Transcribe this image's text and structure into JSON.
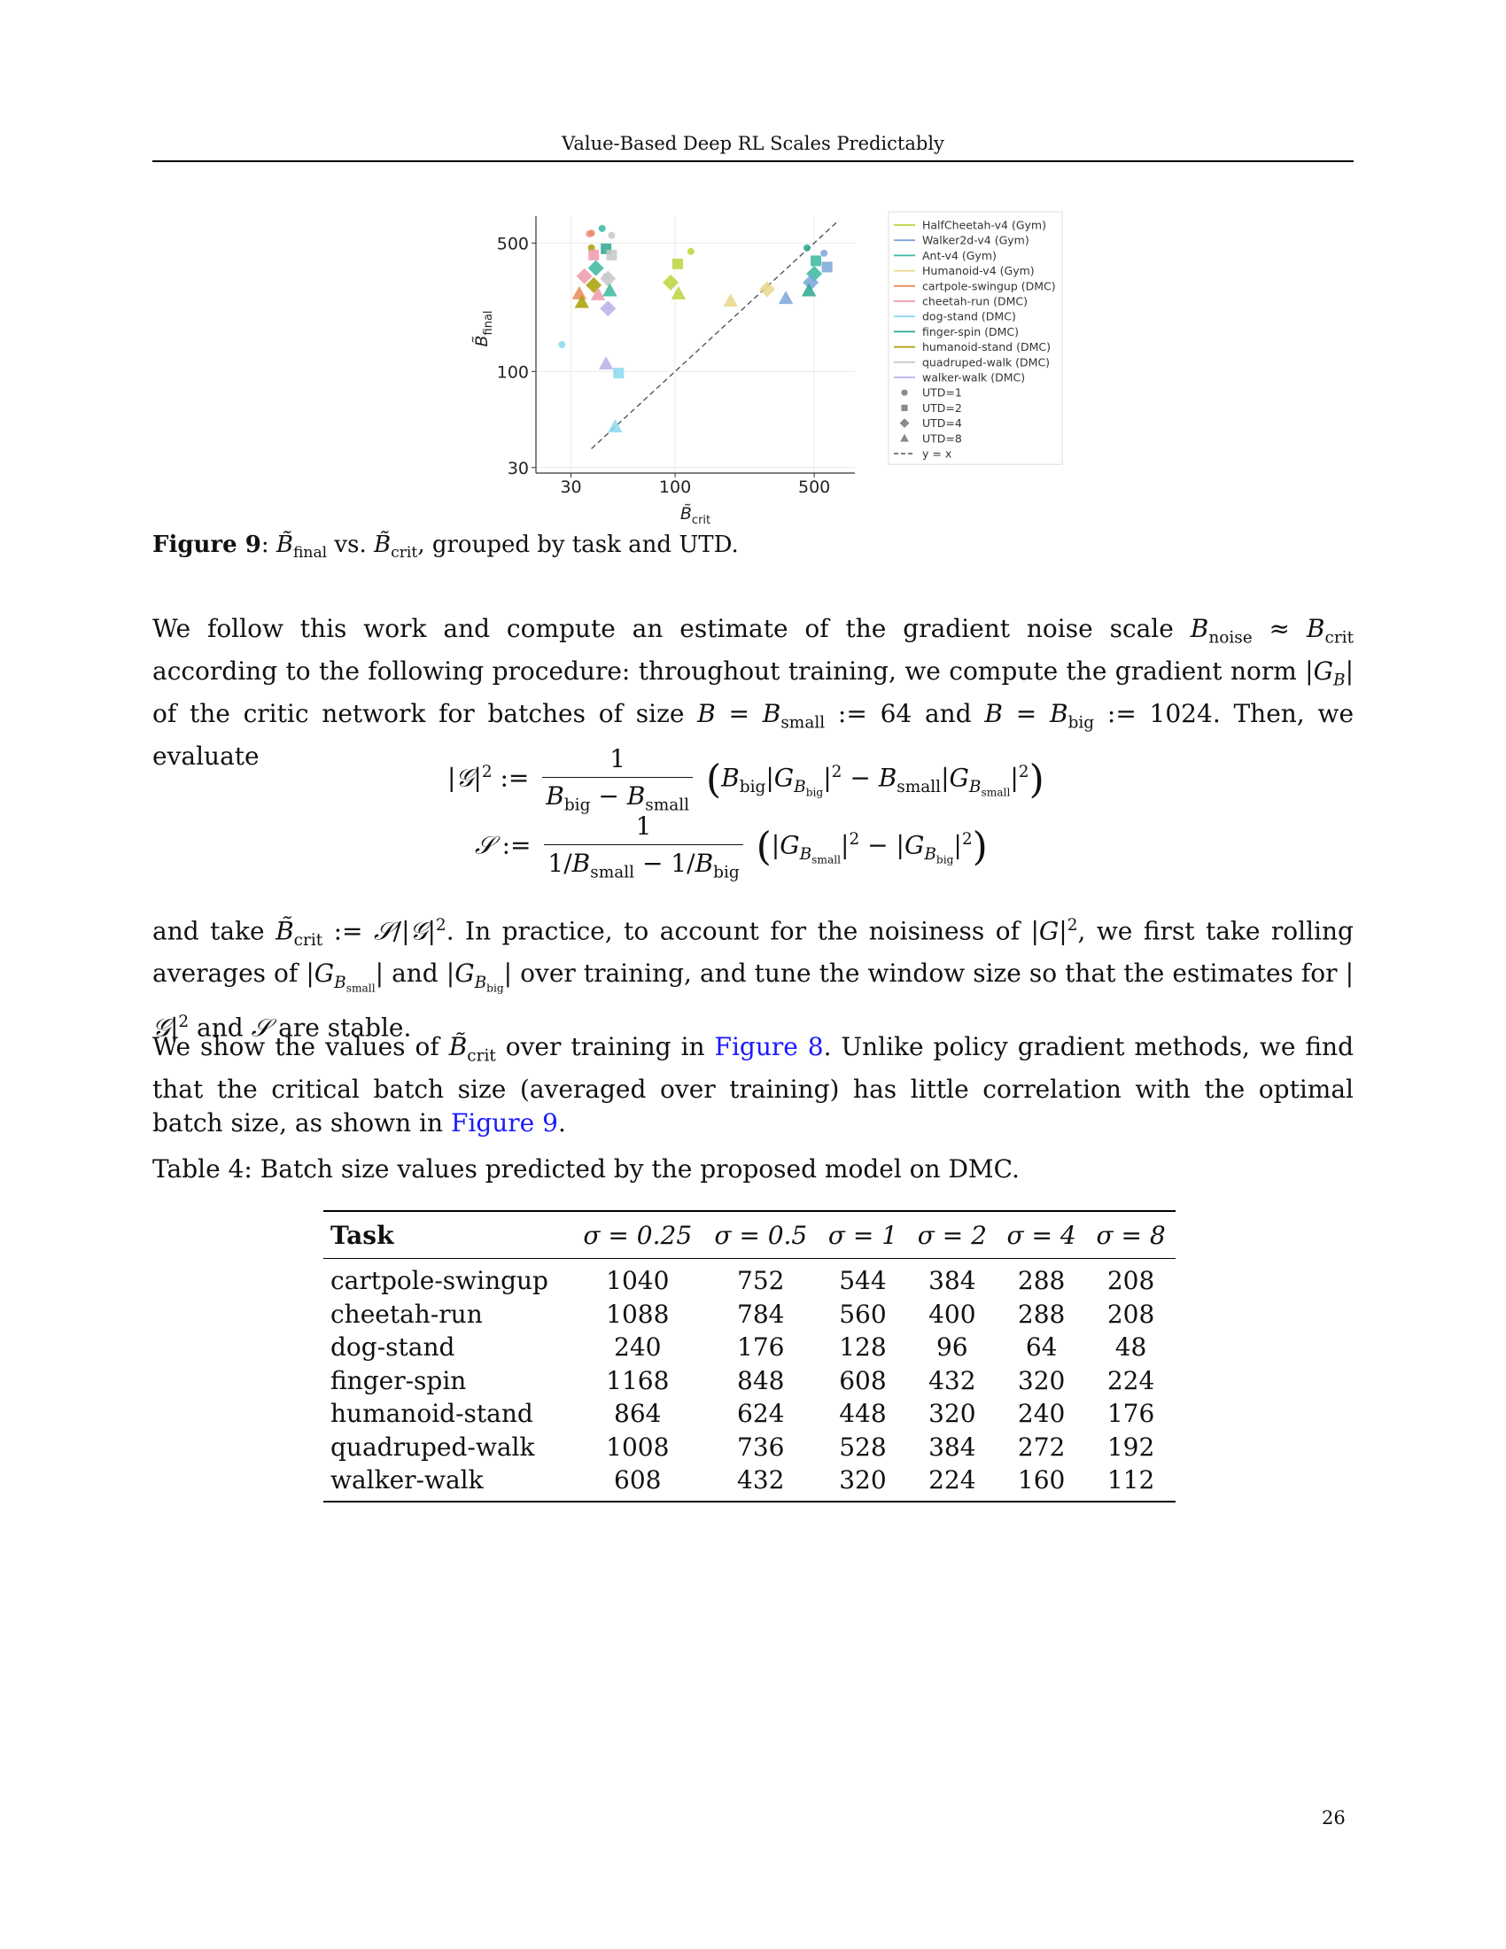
{
  "running_head": "Value-Based Deep RL Scales Predictably",
  "page_number": "26",
  "figure": {
    "label": "Figure 9",
    "caption_parts": {
      "mid": " vs. ",
      "tail": ", grouped by task and UTD."
    },
    "colors": {
      "HalfCheetah-v4 (Gym)": "#b8d63a",
      "Walker2d-v4 (Gym)": "#7aa6d8",
      "Ant-v4 (Gym)": "#3ab8a0",
      "Humanoid-v4 (Gym)": "#e8d88a",
      "cartpole-swingup (DMC)": "#e88a5a",
      "cheetah-run (DMC)": "#f09aaa",
      "dog-stand (DMC)": "#8ad8f0",
      "finger-spin (DMC)": "#2aa890",
      "humanoid-stand (DMC)": "#a8a000",
      "quadruped-walk (DMC)": "#c8c8c8",
      "walker-walk (DMC)": "#b8b0e8"
    }
  },
  "chart_data": {
    "type": "scatter",
    "xlabel_sub": "crit",
    "ylabel_sub": "final",
    "x_scale": "log",
    "y_scale": "log",
    "xlim": [
      20,
      800
    ],
    "ylim": [
      28,
      700
    ],
    "xticks": [
      30,
      100,
      500
    ],
    "yticks": [
      30,
      100,
      500
    ],
    "grid": true,
    "reference_line": "y = x",
    "legend_position": "right",
    "legend": [
      {
        "label": "HalfCheetah-v4 (Gym)",
        "kind": "line"
      },
      {
        "label": "Walker2d-v4 (Gym)",
        "kind": "line"
      },
      {
        "label": "Ant-v4 (Gym)",
        "kind": "line"
      },
      {
        "label": "Humanoid-v4 (Gym)",
        "kind": "line"
      },
      {
        "label": "cartpole-swingup (DMC)",
        "kind": "line"
      },
      {
        "label": "cheetah-run (DMC)",
        "kind": "line"
      },
      {
        "label": "dog-stand (DMC)",
        "kind": "line"
      },
      {
        "label": "finger-spin (DMC)",
        "kind": "line"
      },
      {
        "label": "humanoid-stand (DMC)",
        "kind": "line"
      },
      {
        "label": "quadruped-walk (DMC)",
        "kind": "line"
      },
      {
        "label": "walker-walk (DMC)",
        "kind": "line"
      },
      {
        "label": "UTD=1",
        "kind": "circle"
      },
      {
        "label": "UTD=2",
        "kind": "square"
      },
      {
        "label": "UTD=4",
        "kind": "diamond"
      },
      {
        "label": "UTD=8",
        "kind": "triangle"
      },
      {
        "label": "y = x",
        "kind": "dashed"
      }
    ],
    "points": [
      {
        "task": "cheetah-run (DMC)",
        "utd": 1,
        "x": 37,
        "y": 560
      },
      {
        "task": "cartpole-swingup (DMC)",
        "utd": 1,
        "x": 38,
        "y": 565
      },
      {
        "task": "Ant-v4 (Gym)",
        "utd": 1,
        "x": 43,
        "y": 600
      },
      {
        "task": "quadruped-walk (DMC)",
        "utd": 1,
        "x": 48,
        "y": 550
      },
      {
        "task": "humanoid-stand (DMC)",
        "utd": 1,
        "x": 38,
        "y": 470
      },
      {
        "task": "HalfCheetah-v4 (Gym)",
        "utd": 1,
        "x": 120,
        "y": 450
      },
      {
        "task": "finger-spin (DMC)",
        "utd": 1,
        "x": 460,
        "y": 470
      },
      {
        "task": "Walker2d-v4 (Gym)",
        "utd": 1,
        "x": 560,
        "y": 440
      },
      {
        "task": "dog-stand (DMC)",
        "utd": 1,
        "x": 27,
        "y": 140
      },
      {
        "task": "quadruped-walk (DMC)",
        "utd": 1,
        "x": 45,
        "y": 330
      },
      {
        "task": "cheetah-run (DMC)",
        "utd": 2,
        "x": 39,
        "y": 430
      },
      {
        "task": "finger-spin (DMC)",
        "utd": 2,
        "x": 45,
        "y": 465
      },
      {
        "task": "quadruped-walk (DMC)",
        "utd": 2,
        "x": 48,
        "y": 430
      },
      {
        "task": "HalfCheetah-v4 (Gym)",
        "utd": 2,
        "x": 103,
        "y": 385
      },
      {
        "task": "Ant-v4 (Gym)",
        "utd": 2,
        "x": 510,
        "y": 400
      },
      {
        "task": "Walker2d-v4 (Gym)",
        "utd": 2,
        "x": 580,
        "y": 370
      },
      {
        "task": "dog-stand (DMC)",
        "utd": 2,
        "x": 52,
        "y": 98
      },
      {
        "task": "Ant-v4 (Gym)",
        "utd": 4,
        "x": 40,
        "y": 365
      },
      {
        "task": "cheetah-run (DMC)",
        "utd": 4,
        "x": 35,
        "y": 330
      },
      {
        "task": "quadruped-walk (DMC)",
        "utd": 4,
        "x": 46,
        "y": 320
      },
      {
        "task": "humanoid-stand (DMC)",
        "utd": 4,
        "x": 39,
        "y": 295
      },
      {
        "task": "walker-walk (DMC)",
        "utd": 4,
        "x": 46,
        "y": 220
      },
      {
        "task": "HalfCheetah-v4 (Gym)",
        "utd": 4,
        "x": 95,
        "y": 305
      },
      {
        "task": "Humanoid-v4 (Gym)",
        "utd": 4,
        "x": 290,
        "y": 280
      },
      {
        "task": "Ant-v4 (Gym)",
        "utd": 4,
        "x": 500,
        "y": 340
      },
      {
        "task": "Walker2d-v4 (Gym)",
        "utd": 4,
        "x": 480,
        "y": 305
      },
      {
        "task": "cartpole-swingup (DMC)",
        "utd": 8,
        "x": 33,
        "y": 265
      },
      {
        "task": "humanoid-stand (DMC)",
        "utd": 8,
        "x": 34,
        "y": 238
      },
      {
        "task": "cheetah-run (DMC)",
        "utd": 8,
        "x": 41,
        "y": 262
      },
      {
        "task": "Ant-v4 (Gym)",
        "utd": 8,
        "x": 47,
        "y": 275
      },
      {
        "task": "HalfCheetah-v4 (Gym)",
        "utd": 8,
        "x": 104,
        "y": 265
      },
      {
        "task": "Humanoid-v4 (Gym)",
        "utd": 8,
        "x": 190,
        "y": 242
      },
      {
        "task": "Walker2d-v4 (Gym)",
        "utd": 8,
        "x": 360,
        "y": 250
      },
      {
        "task": "finger-spin (DMC)",
        "utd": 8,
        "x": 470,
        "y": 275
      },
      {
        "task": "walker-walk (DMC)",
        "utd": 8,
        "x": 45,
        "y": 110
      },
      {
        "task": "dog-stand (DMC)",
        "utd": 8,
        "x": 50,
        "y": 50
      }
    ]
  },
  "paragraphs": {
    "p1": {
      "a": "We follow this work and compute an estimate of the gradient noise scale ",
      "b": " according to the following procedure: throughout training, we compute the gradient norm ",
      "c": " of the critic network for batches of size ",
      "d": " and ",
      "e": ". Then, we evaluate"
    },
    "p2": {
      "a": "and take ",
      "b": ". In practice, to account for the noisiness of ",
      "c": ", we first take rolling averages of ",
      "d": " and ",
      "e": " over training, and tune the window size so that the estimates for ",
      "f": " and ",
      "g": " are stable."
    },
    "p3": {
      "a": "We show the values of ",
      "b": " over training in ",
      "ref1": "Figure 8",
      "c": ". Unlike policy gradient methods, we find that the critical batch size (averaged over training) has little correlation with the optimal batch size, as shown in ",
      "ref2": "Figure 9",
      "d": "."
    }
  },
  "table": {
    "caption": "Table 4: Batch size values predicted by the proposed model on DMC.",
    "headers": [
      "Task",
      "σ = 0.25",
      "σ = 0.5",
      "σ = 1",
      "σ = 2",
      "σ = 4",
      "σ = 8"
    ],
    "rows": [
      {
        "task": "cartpole-swingup",
        "values": [
          "1040",
          "752",
          "544",
          "384",
          "288",
          "208"
        ]
      },
      {
        "task": "cheetah-run",
        "values": [
          "1088",
          "784",
          "560",
          "400",
          "288",
          "208"
        ]
      },
      {
        "task": "dog-stand",
        "values": [
          "240",
          "176",
          "128",
          "96",
          "64",
          "48"
        ]
      },
      {
        "task": "finger-spin",
        "values": [
          "1168",
          "848",
          "608",
          "432",
          "320",
          "224"
        ]
      },
      {
        "task": "humanoid-stand",
        "values": [
          "864",
          "624",
          "448",
          "320",
          "240",
          "176"
        ]
      },
      {
        "task": "quadruped-walk",
        "values": [
          "1008",
          "736",
          "528",
          "384",
          "272",
          "192"
        ]
      },
      {
        "task": "walker-walk",
        "values": [
          "608",
          "432",
          "320",
          "224",
          "160",
          "112"
        ]
      }
    ]
  }
}
